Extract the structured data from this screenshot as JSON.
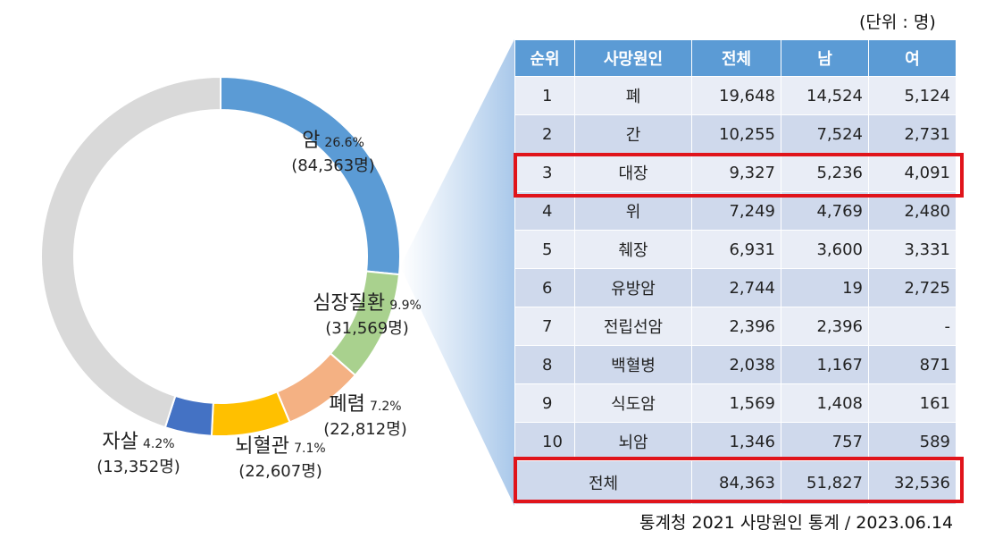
{
  "unit_note": "(단위 : 명)",
  "source_note": "통계청 2021 사망원인 통계 / 2023.06.14",
  "chart_data": [
    {
      "type": "pie",
      "slices": [
        {
          "name": "암",
          "pct_label": "26.6%",
          "count_label": "(84,363명)",
          "value": 84363,
          "percent": 26.6,
          "color": "#5b9bd5"
        },
        {
          "name": "심장질환",
          "pct_label": "9.9%",
          "count_label": "(31,569명)",
          "value": 31569,
          "percent": 9.9,
          "color": "#a9d18e"
        },
        {
          "name": "폐렴",
          "pct_label": "7.2%",
          "count_label": "(22,812명)",
          "value": 22812,
          "percent": 7.2,
          "color": "#f4b183"
        },
        {
          "name": "뇌혈관",
          "pct_label": "7.1%",
          "count_label": "(22,607명)",
          "value": 22607,
          "percent": 7.1,
          "color": "#ffc000"
        },
        {
          "name": "자살",
          "pct_label": "4.2%",
          "count_label": "(13,352명)",
          "value": 13352,
          "percent": 4.2,
          "color": "#4472c4"
        },
        {
          "name": "",
          "pct_label": "",
          "count_label": "",
          "value": null,
          "percent": 45.0,
          "color": "#d9d9d9"
        }
      ]
    },
    {
      "type": "table",
      "columns": [
        "순위",
        "사망원인",
        "전체",
        "남",
        "여"
      ],
      "rows": [
        {
          "rank": "1",
          "name": "폐",
          "total": "19,648",
          "male": "14,524",
          "female": "5,124"
        },
        {
          "rank": "2",
          "name": "간",
          "total": "10,255",
          "male": "7,524",
          "female": "2,731"
        },
        {
          "rank": "3",
          "name": "대장",
          "total": "9,327",
          "male": "5,236",
          "female": "4,091",
          "highlighted": true
        },
        {
          "rank": "4",
          "name": "위",
          "total": "7,249",
          "male": "4,769",
          "female": "2,480"
        },
        {
          "rank": "5",
          "name": "췌장",
          "total": "6,931",
          "male": "3,600",
          "female": "3,331"
        },
        {
          "rank": "6",
          "name": "유방암",
          "total": "2,744",
          "male": "19",
          "female": "2,725"
        },
        {
          "rank": "7",
          "name": "전립선암",
          "total": "2,396",
          "male": "2,396",
          "female": "-"
        },
        {
          "rank": "8",
          "name": "백혈병",
          "total": "2,038",
          "male": "1,167",
          "female": "871"
        },
        {
          "rank": "9",
          "name": "식도암",
          "total": "1,569",
          "male": "1,408",
          "female": "161"
        },
        {
          "rank": "10",
          "name": "뇌암",
          "total": "1,346",
          "male": "757",
          "female": "589"
        }
      ],
      "total_row": {
        "label": "전체",
        "total": "84,363",
        "male": "51,827",
        "female": "32,536",
        "highlighted": true
      }
    }
  ],
  "colors": {
    "header": "#5b9bd5",
    "row_light": "#e9edf6",
    "row_dark": "#cfd9ec",
    "highlight": "#e0141b",
    "callout": "#a9c8ea"
  }
}
